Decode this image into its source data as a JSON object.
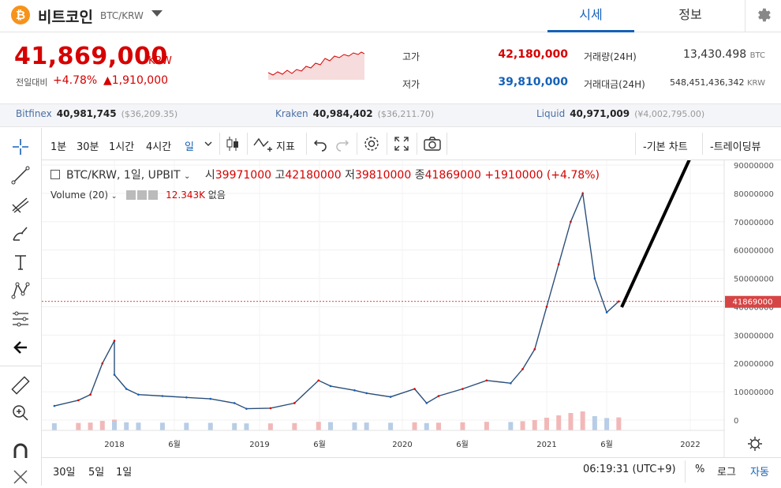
{
  "header": {
    "coin_icon": "bitcoin-icon",
    "coin_name": "비트코인",
    "pair": "BTC/KRW",
    "tabs": [
      {
        "label": "시세"
      },
      {
        "label": "정보"
      }
    ],
    "active_tab": "시세"
  },
  "price": {
    "current": "41,869,000",
    "unit": "KRW",
    "change_label": "전일대비",
    "change_pct": "+4.78%",
    "change_amt": "▲1,910,000"
  },
  "stats": {
    "high_label": "고가",
    "high": "42,180,000",
    "low_label": "저가",
    "low": "39,810,000",
    "volume_label": "거래량(24H)",
    "volume": "13,430.498",
    "volume_unit": "BTC",
    "amount_label": "거래대금(24H)",
    "amount": "548,451,436,342",
    "amount_unit": "KRW"
  },
  "exchanges": [
    {
      "name": "Bitfinex",
      "price": "40,981,745",
      "sub": "($36,209.35)"
    },
    {
      "name": "Kraken",
      "price": "40,984,402",
      "sub": "($36,211.70)"
    },
    {
      "name": "Liquid",
      "price": "40,971,009",
      "sub": "(¥4,002,795.00)"
    }
  ],
  "toolbar": {
    "intervals": [
      "1분",
      "30분",
      "1시간",
      "4시간",
      "일"
    ],
    "active_interval": "일",
    "indicators_label": "지표",
    "basic_chart": "-기본 차트",
    "tradingview": "-트레이딩뷰"
  },
  "legend": {
    "symbol": "BTC/KRW, 1일, UPBIT",
    "open_label": "시",
    "open": "39971000",
    "high_label": "고",
    "high": "42180000",
    "low_label": "저",
    "low": "39810000",
    "close_label": "종",
    "close": "41869000",
    "change": "+1910000 (+4.78%)",
    "volume_label": "Volume (20)",
    "volume_value": "12.343K",
    "volume_extra": "없음"
  },
  "chart_data": {
    "type": "line",
    "symbol": "BTC/KRW",
    "x_tick_labels": [
      "2018",
      "6월",
      "2019",
      "6월",
      "2020",
      "6월",
      "2021",
      "6월",
      "2022"
    ],
    "y_tick_labels": [
      "90000000",
      "80000000",
      "70000000",
      "60000000",
      "50000000",
      "40000000",
      "30000000",
      "20000000",
      "10000000",
      "0"
    ],
    "ylim": [
      0,
      90000000
    ],
    "last_price_label": "41869000",
    "series": [
      {
        "name": "BTC/KRW",
        "x": [
          "2017-08",
          "2017-10",
          "2017-11",
          "2017-12",
          "2018-01",
          "2018-01",
          "2018-02",
          "2018-03",
          "2018-05",
          "2018-07",
          "2018-09",
          "2018-11",
          "2018-12",
          "2019-02",
          "2019-04",
          "2019-06",
          "2019-07",
          "2019-09",
          "2019-10",
          "2019-12",
          "2020-02",
          "2020-03",
          "2020-04",
          "2020-06",
          "2020-08",
          "2020-10",
          "2020-11",
          "2020-12",
          "2021-01",
          "2021-02",
          "2021-03",
          "2021-04",
          "2021-05",
          "2021-06",
          "2021-07"
        ],
        "values": [
          5000000,
          7000000,
          9000000,
          20000000,
          28000000,
          16000000,
          11000000,
          9000000,
          8500000,
          8000000,
          7500000,
          6000000,
          4000000,
          4200000,
          6000000,
          14000000,
          12000000,
          10500000,
          9500000,
          8200000,
          11000000,
          6000000,
          8500000,
          11000000,
          14000000,
          13000000,
          18000000,
          25000000,
          40000000,
          55000000,
          70000000,
          80000000,
          50000000,
          38000000,
          41869000
        ]
      }
    ],
    "volume_legend": "Volume (20)",
    "grid": true,
    "colors": {
      "up": "#d60000",
      "down": "#1561b8",
      "price_line": "#d60000"
    }
  },
  "bottom": {
    "ranges": [
      "30일",
      "5일",
      "1일"
    ],
    "time": "06:19:31 (UTC+9)",
    "pct": "%",
    "log": "로그",
    "auto": "자동"
  }
}
